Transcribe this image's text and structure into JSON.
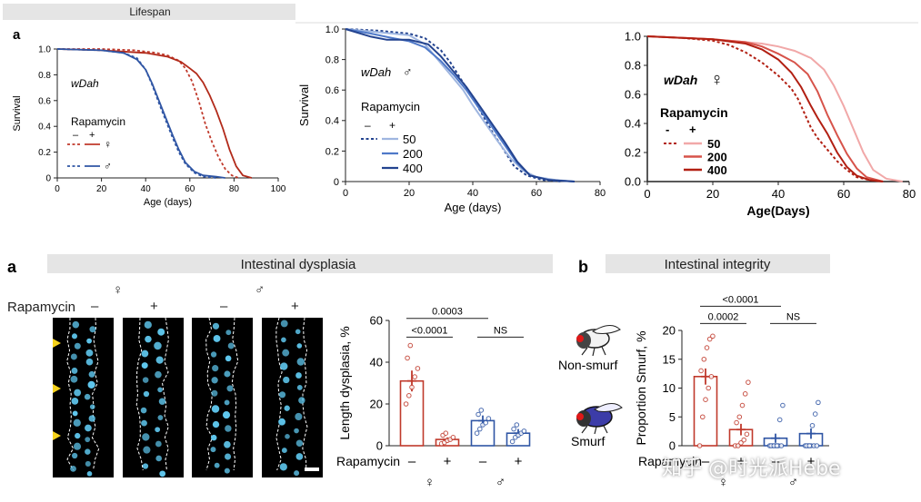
{
  "header": {
    "lifespan": "Lifespan",
    "intestinal_dysplasia": "Intestinal dysplasia",
    "intestinal_integrity": "Intestinal integrity"
  },
  "panel_labels": {
    "top": "a",
    "bottom_left": "a",
    "bottom_right": "b"
  },
  "colors": {
    "female_ctrl": "#c0392b",
    "female_rapa": "#b22a1a",
    "male": "#2f55a4",
    "rapa50_male": "#9fb6e0",
    "rapa200_male": "#4f79c8",
    "rapa400_male": "#23438f",
    "rapa50_female": "#f1a8a8",
    "rapa200_female": "#d7534a",
    "rapa400_female": "#b21f12",
    "grey_band": "#e5e5e5"
  },
  "micro": {
    "rapamycin_label": "Rapamycin",
    "sex_female": "♀",
    "sex_male": "♂",
    "col_signs": [
      "–",
      "+",
      "–",
      "+"
    ]
  },
  "chart_data": [
    {
      "id": "lifespan_sex",
      "type": "line",
      "title": "",
      "xlabel": "Age (days)",
      "ylabel": "Survival",
      "xlim": [
        0,
        100
      ],
      "ylim": [
        0,
        1.0
      ],
      "xticks": [
        0,
        20,
        40,
        60,
        80,
        100
      ],
      "yticks": [
        0,
        0.2,
        0.4,
        0.6,
        0.8,
        1.0
      ],
      "ytick_labels": [
        "0",
        "0.2",
        "0.4",
        "0.6",
        "0.8",
        "1.0"
      ],
      "genotype": "wDah",
      "legend_title": "Rapamycin",
      "legend_signs": [
        "–",
        "+"
      ],
      "legend_rows": [
        {
          "sex": "♀"
        },
        {
          "sex": "♂"
        }
      ],
      "series": [
        {
          "name": "♀ –",
          "style": "dashed",
          "color": "#c0392b",
          "points": [
            [
              0,
              1
            ],
            [
              20,
              1
            ],
            [
              35,
              0.99
            ],
            [
              45,
              0.97
            ],
            [
              50,
              0.95
            ],
            [
              55,
              0.91
            ],
            [
              58,
              0.85
            ],
            [
              61,
              0.75
            ],
            [
              64,
              0.6
            ],
            [
              67,
              0.42
            ],
            [
              70,
              0.28
            ],
            [
              73,
              0.16
            ],
            [
              76,
              0.07
            ],
            [
              79,
              0.02
            ],
            [
              82,
              0
            ]
          ]
        },
        {
          "name": "♀ +",
          "style": "solid",
          "color": "#b22a1a",
          "points": [
            [
              0,
              1
            ],
            [
              20,
              0.99
            ],
            [
              40,
              0.97
            ],
            [
              50,
              0.94
            ],
            [
              56,
              0.9
            ],
            [
              60,
              0.85
            ],
            [
              63,
              0.81
            ],
            [
              66,
              0.74
            ],
            [
              69,
              0.64
            ],
            [
              72,
              0.52
            ],
            [
              75,
              0.38
            ],
            [
              78,
              0.22
            ],
            [
              81,
              0.09
            ],
            [
              84,
              0.02
            ],
            [
              88,
              0
            ]
          ]
        },
        {
          "name": "♂ –",
          "style": "dashed",
          "color": "#2f55a4",
          "points": [
            [
              0,
              1
            ],
            [
              20,
              0.99
            ],
            [
              30,
              0.97
            ],
            [
              36,
              0.93
            ],
            [
              40,
              0.84
            ],
            [
              43,
              0.72
            ],
            [
              46,
              0.58
            ],
            [
              49,
              0.45
            ],
            [
              52,
              0.32
            ],
            [
              55,
              0.2
            ],
            [
              58,
              0.11
            ],
            [
              62,
              0.04
            ],
            [
              66,
              0.01
            ],
            [
              72,
              0
            ]
          ]
        },
        {
          "name": "♂ +",
          "style": "solid",
          "color": "#2f55a4",
          "points": [
            [
              0,
              1
            ],
            [
              20,
              0.99
            ],
            [
              30,
              0.97
            ],
            [
              36,
              0.92
            ],
            [
              40,
              0.84
            ],
            [
              43,
              0.73
            ],
            [
              46,
              0.6
            ],
            [
              49,
              0.47
            ],
            [
              52,
              0.34
            ],
            [
              55,
              0.22
            ],
            [
              58,
              0.12
            ],
            [
              62,
              0.05
            ],
            [
              66,
              0.02
            ],
            [
              72,
              0.01
            ],
            [
              76,
              0
            ]
          ]
        }
      ]
    },
    {
      "id": "lifespan_male_dose",
      "type": "line",
      "xlabel": "Age (days)",
      "ylabel": "Survival",
      "xlim": [
        0,
        80
      ],
      "ylim": [
        0,
        1.0
      ],
      "xticks": [
        0,
        20,
        40,
        60,
        80
      ],
      "yticks": [
        0,
        0.2,
        0.4,
        0.6,
        0.8,
        1.0
      ],
      "ytick_labels": [
        "0",
        "0.2",
        "0.4",
        "0.6",
        "0.8",
        "1.0"
      ],
      "genotype": "wDah",
      "sex": "♂",
      "legend_title": "Rapamycin",
      "legend_signs": [
        "–",
        "+"
      ],
      "legend_labels": [
        "50",
        "200",
        "400"
      ],
      "series": [
        {
          "name": "control",
          "style": "dashed",
          "color": "#23438f",
          "points": [
            [
              0,
              1
            ],
            [
              10,
              0.99
            ],
            [
              20,
              0.97
            ],
            [
              25,
              0.94
            ],
            [
              30,
              0.86
            ],
            [
              33,
              0.78
            ],
            [
              36,
              0.68
            ],
            [
              40,
              0.55
            ],
            [
              43,
              0.44
            ],
            [
              46,
              0.33
            ],
            [
              50,
              0.2
            ],
            [
              53,
              0.1
            ],
            [
              57,
              0.04
            ],
            [
              62,
              0.01
            ],
            [
              68,
              0
            ]
          ]
        },
        {
          "name": "50",
          "style": "solid",
          "color": "#9fb6e0",
          "points": [
            [
              0,
              1
            ],
            [
              10,
              0.98
            ],
            [
              20,
              0.96
            ],
            [
              25,
              0.9
            ],
            [
              29,
              0.8
            ],
            [
              33,
              0.7
            ],
            [
              37,
              0.6
            ],
            [
              40,
              0.5
            ],
            [
              44,
              0.38
            ],
            [
              48,
              0.26
            ],
            [
              52,
              0.15
            ],
            [
              56,
              0.07
            ],
            [
              60,
              0.03
            ],
            [
              66,
              0.01
            ],
            [
              72,
              0
            ]
          ]
        },
        {
          "name": "200",
          "style": "solid",
          "color": "#4f79c8",
          "points": [
            [
              0,
              1
            ],
            [
              8,
              0.97
            ],
            [
              15,
              0.94
            ],
            [
              20,
              0.92
            ],
            [
              25,
              0.88
            ],
            [
              30,
              0.79
            ],
            [
              34,
              0.7
            ],
            [
              38,
              0.6
            ],
            [
              42,
              0.48
            ],
            [
              46,
              0.36
            ],
            [
              50,
              0.24
            ],
            [
              54,
              0.12
            ],
            [
              58,
              0.04
            ],
            [
              64,
              0.01
            ],
            [
              72,
              0
            ]
          ]
        },
        {
          "name": "400",
          "style": "solid",
          "color": "#23438f",
          "points": [
            [
              0,
              1
            ],
            [
              8,
              0.95
            ],
            [
              13,
              0.93
            ],
            [
              20,
              0.93
            ],
            [
              26,
              0.9
            ],
            [
              30,
              0.82
            ],
            [
              34,
              0.72
            ],
            [
              38,
              0.62
            ],
            [
              42,
              0.5
            ],
            [
              46,
              0.38
            ],
            [
              50,
              0.26
            ],
            [
              54,
              0.13
            ],
            [
              58,
              0.04
            ],
            [
              64,
              0.01
            ],
            [
              72,
              0
            ]
          ]
        }
      ]
    },
    {
      "id": "lifespan_female_dose",
      "type": "line",
      "xlabel": "Age(Days)",
      "ylabel": "",
      "xlim": [
        0,
        80
      ],
      "ylim": [
        0,
        1.0
      ],
      "xticks": [
        0,
        20,
        40,
        60,
        80
      ],
      "yticks": [
        0,
        0.2,
        0.4,
        0.6,
        0.8,
        1.0
      ],
      "ytick_labels": [
        "0.0",
        "0.2",
        "0.4",
        "0.6",
        "0.8",
        "1.0"
      ],
      "genotype": "wDah",
      "sex": "♀",
      "legend_title": "Rapamycin",
      "legend_signs": [
        "-",
        "+"
      ],
      "legend_labels": [
        "50",
        "200",
        "400"
      ],
      "series": [
        {
          "name": "control",
          "style": "dashed",
          "color": "#b21f12",
          "points": [
            [
              0,
              1
            ],
            [
              10,
              0.99
            ],
            [
              20,
              0.97
            ],
            [
              25,
              0.94
            ],
            [
              30,
              0.89
            ],
            [
              35,
              0.82
            ],
            [
              40,
              0.73
            ],
            [
              44,
              0.64
            ],
            [
              46,
              0.57
            ],
            [
              48,
              0.47
            ],
            [
              50,
              0.37
            ],
            [
              52,
              0.3
            ],
            [
              55,
              0.22
            ],
            [
              58,
              0.14
            ],
            [
              61,
              0.08
            ],
            [
              64,
              0.03
            ],
            [
              68,
              0.01
            ],
            [
              72,
              0
            ]
          ]
        },
        {
          "name": "50",
          "style": "solid",
          "color": "#f1a8a8",
          "points": [
            [
              0,
              1
            ],
            [
              10,
              0.99
            ],
            [
              20,
              0.98
            ],
            [
              30,
              0.96
            ],
            [
              35,
              0.95
            ],
            [
              40,
              0.93
            ],
            [
              45,
              0.9
            ],
            [
              50,
              0.85
            ],
            [
              54,
              0.77
            ],
            [
              57,
              0.66
            ],
            [
              60,
              0.52
            ],
            [
              63,
              0.36
            ],
            [
              66,
              0.2
            ],
            [
              69,
              0.08
            ],
            [
              73,
              0.02
            ],
            [
              78,
              0
            ]
          ]
        },
        {
          "name": "200",
          "style": "solid",
          "color": "#d7534a",
          "points": [
            [
              0,
              1
            ],
            [
              10,
              0.99
            ],
            [
              20,
              0.98
            ],
            [
              30,
              0.96
            ],
            [
              35,
              0.93
            ],
            [
              40,
              0.88
            ],
            [
              45,
              0.82
            ],
            [
              49,
              0.74
            ],
            [
              52,
              0.62
            ],
            [
              55,
              0.46
            ],
            [
              58,
              0.32
            ],
            [
              61,
              0.19
            ],
            [
              64,
              0.09
            ],
            [
              67,
              0.03
            ],
            [
              72,
              0
            ]
          ]
        },
        {
          "name": "400",
          "style": "solid",
          "color": "#b21f12",
          "points": [
            [
              0,
              1
            ],
            [
              10,
              0.99
            ],
            [
              20,
              0.98
            ],
            [
              30,
              0.95
            ],
            [
              35,
              0.91
            ],
            [
              40,
              0.84
            ],
            [
              44,
              0.75
            ],
            [
              47,
              0.65
            ],
            [
              50,
              0.52
            ],
            [
              52,
              0.44
            ],
            [
              55,
              0.33
            ],
            [
              58,
              0.2
            ],
            [
              61,
              0.1
            ],
            [
              64,
              0.04
            ],
            [
              68,
              0.01
            ],
            [
              72,
              0
            ]
          ]
        }
      ]
    },
    {
      "id": "dysplasia",
      "type": "bar",
      "ylabel": "Length dysplasia, %",
      "ylim": [
        0,
        60
      ],
      "yticks": [
        0,
        20,
        40,
        60
      ],
      "x_title": "Rapamycin",
      "categories": [
        "–",
        "+",
        "–",
        "+"
      ],
      "groups": [
        "♀",
        "♂"
      ],
      "values": [
        31,
        3,
        12,
        6
      ],
      "errors": [
        5,
        1,
        2.5,
        2
      ],
      "colors": [
        "#c0392b",
        "#c0392b",
        "#2f55a4",
        "#2f55a4"
      ],
      "points": [
        [
          20,
          24,
          28,
          33,
          37,
          42,
          48
        ],
        [
          1,
          1.5,
          2.5,
          3,
          4,
          5,
          6
        ],
        [
          6,
          8,
          10,
          11,
          13,
          15,
          17
        ],
        [
          2,
          4,
          5,
          6,
          7,
          8,
          10
        ]
      ],
      "significance": [
        {
          "from": 0,
          "to": 1,
          "label": "<0.0001",
          "y": 52
        },
        {
          "from": 0,
          "to": 2,
          "label": "0.0003",
          "y": 61
        },
        {
          "from": 2,
          "to": 3,
          "label": "NS",
          "y": 52
        }
      ]
    },
    {
      "id": "smurf",
      "type": "bar",
      "ylabel": "Proportion Smurf, %",
      "ylim": [
        0,
        20
      ],
      "yticks": [
        0,
        5,
        10,
        15,
        20
      ],
      "x_title": "Rapamycin",
      "categories": [
        "–",
        "+",
        "–",
        "+"
      ],
      "groups": [
        "♀",
        "♂"
      ],
      "values": [
        12,
        2.8,
        1.3,
        2.1
      ],
      "errors": [
        1.4,
        1.0,
        0.8,
        0.9
      ],
      "colors": [
        "#c0392b",
        "#c0392b",
        "#2f55a4",
        "#2f55a4"
      ],
      "points": [
        [
          0,
          5,
          8,
          10,
          12,
          13,
          15,
          17,
          18.5,
          19
        ],
        [
          0,
          0,
          0.5,
          1,
          2,
          4,
          5,
          7,
          9,
          11
        ],
        [
          0,
          0,
          0,
          0,
          0,
          0,
          0,
          0,
          4.5,
          7
        ],
        [
          0,
          0,
          0,
          0,
          0,
          0,
          0,
          3.5,
          5.5,
          7.5
        ]
      ],
      "significance": [
        {
          "from": 0,
          "to": 1,
          "label": "0.0002",
          "y": 21.2
        },
        {
          "from": 0,
          "to": 2,
          "label": "<0.0001",
          "y": 24.2
        },
        {
          "from": 2,
          "to": 3,
          "label": "NS",
          "y": 21.2
        }
      ],
      "fly_labels": [
        "Non-smurf",
        "Smurf"
      ]
    }
  ],
  "watermark": "知乎 @时光派Hebe"
}
